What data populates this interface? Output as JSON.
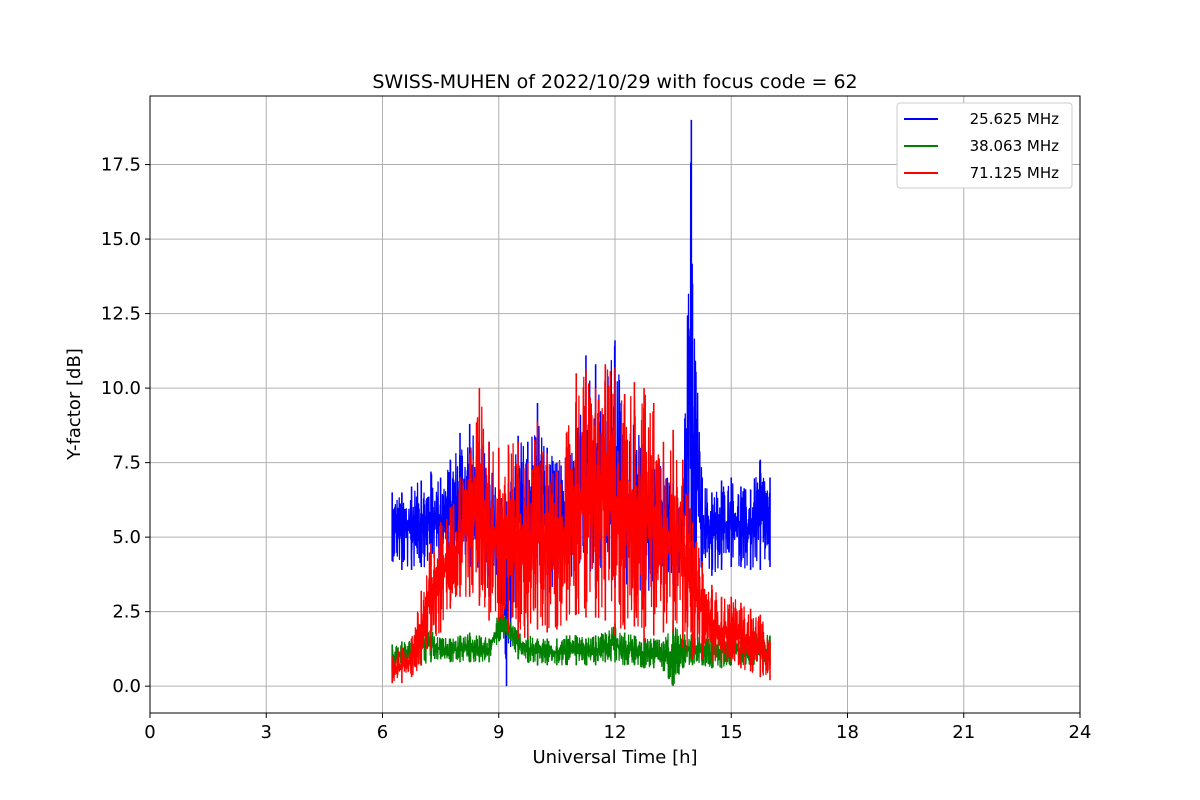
{
  "chart_data": {
    "type": "line",
    "title": "SWISS-MUHEN of 2022/10/29 with focus code = 62",
    "xlabel": "Universal Time [h]",
    "ylabel": "Y-factor [dB]",
    "xlim": [
      0,
      24
    ],
    "ylim": [
      -0.9,
      19.8
    ],
    "xticks": [
      0,
      3,
      6,
      9,
      12,
      15,
      18,
      21,
      24
    ],
    "yticks": [
      0.0,
      2.5,
      5.0,
      7.5,
      10.0,
      12.5,
      15.0,
      17.5
    ],
    "grid": true,
    "legend_position": "top-right",
    "series": [
      {
        "name": "25.625 MHz",
        "color": "#0000ff",
        "x": [
          6.25,
          6.5,
          6.75,
          7.0,
          7.25,
          7.5,
          7.75,
          8.0,
          8.25,
          8.5,
          8.75,
          9.0,
          9.2,
          9.5,
          9.75,
          10.0,
          10.25,
          10.5,
          10.75,
          11.0,
          11.25,
          11.5,
          11.75,
          12.0,
          12.25,
          12.5,
          12.75,
          13.0,
          13.25,
          13.5,
          13.75,
          13.97,
          14.0,
          14.25,
          14.5,
          14.75,
          15.0,
          15.25,
          15.5,
          15.75,
          16.0
        ],
        "y_min": [
          4.2,
          3.9,
          3.9,
          4.0,
          4.0,
          4.0,
          4.0,
          4.1,
          4.0,
          3.9,
          3.0,
          3.0,
          0.0,
          3.2,
          3.6,
          3.5,
          3.0,
          3.4,
          3.5,
          3.6,
          3.6,
          3.3,
          3.2,
          3.3,
          3.0,
          2.8,
          3.0,
          3.2,
          3.3,
          3.4,
          3.4,
          3.5,
          3.5,
          3.9,
          3.7,
          3.9,
          4.0,
          4.0,
          3.9,
          3.9,
          4.0
        ],
        "y_max": [
          6.5,
          6.5,
          6.7,
          6.9,
          7.2,
          7.0,
          7.6,
          8.5,
          8.8,
          8.0,
          8.2,
          6.8,
          6.2,
          8.4,
          8.2,
          9.5,
          8.0,
          7.5,
          8.0,
          8.5,
          11.1,
          10.8,
          10.7,
          11.6,
          9.8,
          9.3,
          8.0,
          8.0,
          7.5,
          6.8,
          6.9,
          19.0,
          13.5,
          7.0,
          6.5,
          6.9,
          7.0,
          6.7,
          6.6,
          7.6,
          7.0
        ]
      },
      {
        "name": "38.063 MHz",
        "color": "#008000",
        "x": [
          6.25,
          6.5,
          6.75,
          7.0,
          7.25,
          7.5,
          7.75,
          8.0,
          8.25,
          8.5,
          8.75,
          9.0,
          9.25,
          9.5,
          9.75,
          10.0,
          10.25,
          10.5,
          10.75,
          11.0,
          11.25,
          11.5,
          11.75,
          12.0,
          12.25,
          12.5,
          12.75,
          13.0,
          13.25,
          13.5,
          13.75,
          14.0,
          14.25,
          14.5,
          14.75,
          15.0,
          15.25,
          15.5,
          15.75,
          16.0
        ],
        "y_min": [
          0.5,
          0.6,
          0.7,
          0.7,
          0.8,
          0.9,
          0.8,
          0.8,
          0.8,
          0.8,
          0.8,
          1.5,
          1.6,
          0.9,
          0.8,
          0.7,
          0.7,
          0.7,
          0.7,
          0.7,
          0.7,
          0.7,
          0.8,
          0.8,
          0.7,
          0.7,
          0.6,
          0.6,
          0.5,
          0.0,
          0.6,
          0.7,
          0.7,
          0.6,
          0.6,
          0.7,
          0.7,
          0.7,
          0.7,
          0.7
        ],
        "y_max": [
          1.4,
          1.5,
          1.6,
          2.2,
          2.0,
          1.6,
          1.6,
          1.7,
          1.8,
          1.7,
          1.6,
          2.5,
          2.4,
          1.9,
          1.7,
          1.6,
          1.6,
          1.6,
          1.7,
          1.7,
          1.6,
          1.7,
          1.8,
          2.1,
          1.8,
          1.7,
          1.6,
          1.6,
          1.5,
          2.2,
          2.0,
          1.8,
          1.7,
          1.6,
          1.7,
          1.8,
          1.7,
          1.7,
          1.8,
          1.7
        ]
      },
      {
        "name": "71.125 MHz",
        "color": "#ff0000",
        "x": [
          6.25,
          6.5,
          6.75,
          7.0,
          7.25,
          7.5,
          7.75,
          8.0,
          8.25,
          8.5,
          8.75,
          9.0,
          9.25,
          9.5,
          9.75,
          10.0,
          10.25,
          10.5,
          10.75,
          11.0,
          11.25,
          11.5,
          11.75,
          12.0,
          12.25,
          12.5,
          12.75,
          13.0,
          13.25,
          13.5,
          13.75,
          14.0,
          14.25,
          14.5,
          14.75,
          15.0,
          15.25,
          15.5,
          15.75,
          16.0
        ],
        "y_min": [
          0.1,
          0.1,
          0.3,
          0.7,
          1.2,
          1.8,
          2.6,
          3.0,
          3.0,
          2.7,
          2.2,
          2.2,
          1.8,
          1.6,
          1.6,
          1.9,
          1.8,
          1.9,
          2.2,
          2.4,
          2.3,
          2.3,
          2.2,
          1.7,
          1.9,
          2.0,
          1.5,
          1.7,
          1.8,
          1.8,
          1.3,
          0.9,
          0.9,
          0.8,
          0.8,
          0.8,
          0.6,
          0.5,
          0.3,
          0.2
        ],
        "y_max": [
          1.0,
          1.3,
          1.6,
          3.2,
          4.8,
          5.5,
          6.0,
          7.0,
          7.8,
          10.0,
          8.2,
          8.0,
          8.1,
          8.2,
          7.5,
          8.9,
          7.8,
          7.2,
          8.5,
          10.5,
          10.6,
          10.0,
          10.8,
          10.7,
          9.8,
          10.2,
          10.0,
          9.5,
          8.2,
          8.6,
          7.6,
          5.5,
          4.2,
          3.4,
          3.0,
          3.0,
          2.8,
          2.6,
          2.4,
          1.5
        ]
      }
    ]
  }
}
